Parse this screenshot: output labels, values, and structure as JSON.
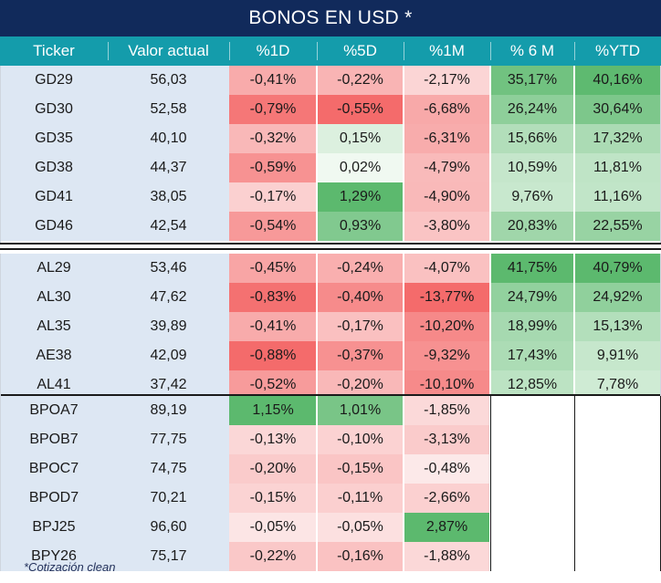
{
  "title": "BONOS EN USD *",
  "columns": [
    "Ticker",
    "Valor actual",
    "%1D",
    "%5D",
    "%1M",
    "% 6 M",
    "%YTD"
  ],
  "groups": [
    {
      "rows": [
        {
          "ticker": "GD29",
          "valor": "56,03",
          "d1": "-0,41%",
          "d5": "-0,22%",
          "m1": "-2,17%",
          "m6": "35,17%",
          "ytd": "40,16%"
        },
        {
          "ticker": "GD30",
          "valor": "52,58",
          "d1": "-0,79%",
          "d5": "-0,55%",
          "m1": "-6,68%",
          "m6": "26,24%",
          "ytd": "30,64%"
        },
        {
          "ticker": "GD35",
          "valor": "40,10",
          "d1": "-0,32%",
          "d5": "0,15%",
          "m1": "-6,31%",
          "m6": "15,66%",
          "ytd": "17,32%"
        },
        {
          "ticker": "GD38",
          "valor": "44,37",
          "d1": "-0,59%",
          "d5": "0,02%",
          "m1": "-4,79%",
          "m6": "10,59%",
          "ytd": "11,81%"
        },
        {
          "ticker": "GD41",
          "valor": "38,05",
          "d1": "-0,17%",
          "d5": "1,29%",
          "m1": "-4,90%",
          "m6": "9,76%",
          "ytd": "11,16%"
        },
        {
          "ticker": "GD46",
          "valor": "42,54",
          "d1": "-0,54%",
          "d5": "0,93%",
          "m1": "-3,80%",
          "m6": "20,83%",
          "ytd": "22,55%"
        }
      ]
    },
    {
      "rows": [
        {
          "ticker": "AL29",
          "valor": "53,46",
          "d1": "-0,45%",
          "d5": "-0,24%",
          "m1": "-4,07%",
          "m6": "41,75%",
          "ytd": "40,79%"
        },
        {
          "ticker": "AL30",
          "valor": "47,62",
          "d1": "-0,83%",
          "d5": "-0,40%",
          "m1": "-13,77%",
          "m6": "24,79%",
          "ytd": "24,92%"
        },
        {
          "ticker": "AL35",
          "valor": "39,89",
          "d1": "-0,41%",
          "d5": "-0,17%",
          "m1": "-10,20%",
          "m6": "18,99%",
          "ytd": "15,13%"
        },
        {
          "ticker": "AE38",
          "valor": "42,09",
          "d1": "-0,88%",
          "d5": "-0,37%",
          "m1": "-9,32%",
          "m6": "17,43%",
          "ytd": "9,91%"
        },
        {
          "ticker": "AL41",
          "valor": "37,42",
          "d1": "-0,52%",
          "d5": "-0,20%",
          "m1": "-10,10%",
          "m6": "12,85%",
          "ytd": "7,78%"
        }
      ]
    },
    {
      "rows": [
        {
          "ticker": "BPOA7",
          "valor": "89,19",
          "d1": "1,15%",
          "d5": "1,01%",
          "m1": "-1,85%",
          "m6": "",
          "ytd": ""
        },
        {
          "ticker": "BPOB7",
          "valor": "77,75",
          "d1": "-0,13%",
          "d5": "-0,10%",
          "m1": "-3,13%",
          "m6": "",
          "ytd": ""
        },
        {
          "ticker": "BPOC7",
          "valor": "74,75",
          "d1": "-0,20%",
          "d5": "-0,15%",
          "m1": "-0,48%",
          "m6": "",
          "ytd": ""
        },
        {
          "ticker": "BPOD7",
          "valor": "70,21",
          "d1": "-0,15%",
          "d5": "-0,11%",
          "m1": "-2,66%",
          "m6": "",
          "ytd": ""
        },
        {
          "ticker": "BPJ25",
          "valor": "96,60",
          "d1": "-0,05%",
          "d5": "-0,05%",
          "m1": "2,87%",
          "m6": "",
          "ytd": ""
        },
        {
          "ticker": "BPY26",
          "valor": "75,17",
          "d1": "-0,22%",
          "d5": "-0,16%",
          "m1": "-1,88%",
          "m6": "",
          "ytd": ""
        }
      ]
    }
  ],
  "footnote": "*Cotización clean",
  "colors": {
    "title_bg": "#112a5b",
    "header_bg": "#149cab",
    "left_bg": "#dde7f3",
    "neg_max": "#f46b6b",
    "pos_max": "#5cb96e"
  }
}
